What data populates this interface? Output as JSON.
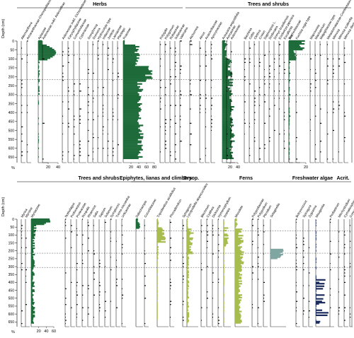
{
  "colors": {
    "herbs": "#1e6b3a",
    "trees": "#1e6b3a",
    "epiphytes": "#a8bd4f",
    "bryophytes": "#a8bd4f",
    "ferns": "#c9c96a",
    "ferns_dark": "#8aa44c",
    "freshwater": "#1c2c5c",
    "gray": "#7fa6a0",
    "black": "#000000"
  },
  "chart_data": [
    {
      "type": "bar",
      "panel": "top",
      "ylabel": "Depth (cm)",
      "xlabel": "%",
      "ylim": [
        0,
        680
      ],
      "yticks": [
        0,
        50,
        100,
        150,
        200,
        250,
        300,
        350,
        400,
        450,
        500,
        550,
        600,
        650
      ],
      "zone_lines": [
        75,
        215,
        305
      ],
      "groups": [
        {
          "name": "Herbs",
          "x0": 24,
          "x1": 258
        },
        {
          "name": "Trees and shrubs",
          "x0": 262,
          "x1": 496
        }
      ],
      "taxa": [
        {
          "name": "Alternanthera",
          "col": 30,
          "w": 6,
          "color": "black",
          "profile": "sparse",
          "group": "herbs"
        },
        {
          "name": "Amaranthaceae-Chenopodiaceae",
          "col": 38,
          "w": 6,
          "color": "black",
          "profile": "sparse",
          "group": "herbs"
        },
        {
          "name": "Apiaceae",
          "col": 54,
          "w": 28,
          "color": "herbs",
          "profile": "apiaceae",
          "group": "herbs",
          "ticks": [
            "20",
            "40"
          ]
        },
        {
          "name": "Asteraceae subf. Asteroideae",
          "col": 60,
          "w": 8,
          "color": "black",
          "profile": "sparse",
          "group": "herbs"
        },
        {
          "name": "Asteraceae subf. Cichorioideae",
          "col": 88,
          "w": 6,
          "color": "black",
          "profile": "sparse",
          "group": "herbs"
        },
        {
          "name": "Caryophyllaceae",
          "col": 96,
          "w": 6,
          "color": "black",
          "profile": "sparse",
          "group": "herbs"
        },
        {
          "name": "Convolvulaceae",
          "col": 104,
          "w": 6,
          "color": "black",
          "profile": "sparse",
          "group": "herbs"
        },
        {
          "name": "Cyperaceae",
          "col": 112,
          "w": 10,
          "color": "black",
          "profile": "sparse",
          "group": "herbs"
        },
        {
          "name": "Gomphrena",
          "col": 124,
          "w": 6,
          "color": "black",
          "profile": "sparse",
          "group": "herbs"
        },
        {
          "name": "Gunnera",
          "col": 131,
          "w": 6,
          "color": "black",
          "profile": "sparse",
          "group": "herbs"
        },
        {
          "name": "Hydrocotyle type",
          "col": 138,
          "w": 6,
          "color": "black",
          "profile": "sparse",
          "group": "herbs"
        },
        {
          "name": "Iridaceae",
          "col": 145,
          "w": 6,
          "color": "black",
          "profile": "sparse",
          "group": "herbs"
        },
        {
          "name": "Justicia",
          "col": 152,
          "w": 6,
          "color": "black",
          "profile": "sparse",
          "group": "herbs"
        },
        {
          "name": "Lamiaceae",
          "col": 159,
          "w": 6,
          "color": "black",
          "profile": "sparse",
          "group": "herbs"
        },
        {
          "name": "Plantago",
          "col": 166,
          "w": 6,
          "color": "black",
          "profile": "sparse",
          "group": "herbs"
        },
        {
          "name": "Poaceae",
          "col": 174,
          "w": 44,
          "color": "herbs",
          "profile": "poaceae",
          "group": "herbs",
          "ticks": [
            "20",
            "40",
            "60",
            "80"
          ]
        },
        {
          "name": "Polygala",
          "col": 226,
          "w": 6,
          "color": "black",
          "profile": "sparse",
          "group": "herbs"
        },
        {
          "name": "Polygonum",
          "col": 233,
          "w": 6,
          "color": "black",
          "profile": "sparse",
          "group": "herbs"
        },
        {
          "name": "Rubiaceae",
          "col": 240,
          "w": 6,
          "color": "black",
          "profile": "sparse",
          "group": "herbs"
        },
        {
          "name": "Solanaceae",
          "col": 247,
          "w": 6,
          "color": "black",
          "profile": "sparse",
          "group": "herbs"
        },
        {
          "name": "Valeriana",
          "col": 254,
          "w": 8,
          "color": "black",
          "profile": "sparse",
          "group": "herbs"
        },
        {
          "name": "Alchornea",
          "col": 268,
          "w": 10,
          "color": "black",
          "profile": "sparse",
          "group": "trees"
        },
        {
          "name": "Alnus",
          "col": 282,
          "w": 6,
          "color": "black",
          "profile": "sparse",
          "group": "trees"
        },
        {
          "name": "Anacardiaceae",
          "col": 290,
          "w": 6,
          "color": "black",
          "profile": "sparse",
          "group": "trees"
        },
        {
          "name": "Apocynaceae",
          "col": 298,
          "w": 6,
          "color": "black",
          "profile": "sparse",
          "group": "trees"
        },
        {
          "name": "Araucaria angustifolia",
          "col": 314,
          "w": 22,
          "color": "trees",
          "profile": "araucaria",
          "group": "trees",
          "ticks": [
            "20",
            "40"
          ]
        },
        {
          "name": "Arecaceae",
          "col": 320,
          "w": 6,
          "color": "black",
          "profile": "sparse",
          "group": "trees"
        },
        {
          "name": "Asteraceae",
          "col": 326,
          "w": 6,
          "color": "black",
          "profile": "sparse",
          "group": "trees"
        },
        {
          "name": "Bauhinia",
          "col": 345,
          "w": 6,
          "color": "black",
          "profile": "sparse",
          "group": "trees"
        },
        {
          "name": "Celtis",
          "col": 352,
          "w": 6,
          "color": "black",
          "profile": "sparse",
          "group": "trees"
        },
        {
          "name": "Clethra",
          "col": 359,
          "w": 6,
          "color": "black",
          "profile": "sparse",
          "group": "trees"
        },
        {
          "name": "Croton",
          "col": 366,
          "w": 6,
          "color": "black",
          "profile": "sparse",
          "group": "trees"
        },
        {
          "name": "Daphnopsis L.",
          "col": 373,
          "w": 6,
          "color": "black",
          "profile": "sparse",
          "group": "trees"
        },
        {
          "name": "Dodonaea",
          "col": 380,
          "w": 6,
          "color": "black",
          "profile": "sparse",
          "group": "trees"
        },
        {
          "name": "Drimys brasiliensis",
          "col": 387,
          "w": 6,
          "color": "black",
          "profile": "sparse",
          "group": "trees"
        },
        {
          "name": "Eriobotrya japonica",
          "col": 394,
          "w": 6,
          "color": "black",
          "profile": "sparse",
          "group": "trees"
        },
        {
          "name": "Escallonia",
          "col": 401,
          "w": 6,
          "color": "black",
          "profile": "sparse",
          "group": "trees"
        },
        {
          "name": "Euphorbiaceae",
          "col": 408,
          "w": 6,
          "color": "black",
          "profile": "sparse",
          "group": "trees"
        },
        {
          "name": "Fuchsia regia type",
          "col": 418,
          "w": 6,
          "color": "black",
          "profile": "sparse",
          "group": "trees"
        },
        {
          "name": "Ilex",
          "col": 408,
          "w": 24,
          "color": "trees",
          "profile": "ilex",
          "group": "trees",
          "ticks": [
            "20"
          ]
        },
        {
          "name": "Maprounea",
          "col": 438,
          "w": 6,
          "color": "black",
          "profile": "sparse",
          "group": "trees"
        },
        {
          "name": "Machaerium",
          "col": 445,
          "w": 6,
          "color": "black",
          "profile": "sparse",
          "group": "trees"
        },
        {
          "name": "Malpighiaceae type",
          "col": 452,
          "w": 6,
          "color": "black",
          "profile": "sparse",
          "group": "trees"
        },
        {
          "name": "Melastomataceae-Combretaceae",
          "col": 462,
          "w": 6,
          "color": "black",
          "profile": "sparse",
          "group": "trees"
        },
        {
          "name": "Mimosa",
          "col": 470,
          "w": 6,
          "color": "black",
          "profile": "sparse",
          "group": "trees"
        },
        {
          "name": "Mimosa scabrella",
          "col": 478,
          "w": 6,
          "color": "black",
          "profile": "sparse",
          "group": "trees"
        },
        {
          "name": "Mimosa diesi",
          "col": 486,
          "w": 6,
          "color": "black",
          "profile": "sparse",
          "group": "trees"
        }
      ]
    },
    {
      "type": "bar",
      "panel": "bottom",
      "ylabel": "Depth (cm)",
      "xlabel": "%",
      "ylim": [
        0,
        680
      ],
      "yticks": [
        0,
        50,
        100,
        150,
        200,
        250,
        300,
        350,
        400,
        450,
        500,
        550,
        600,
        650
      ],
      "zone_lines": [
        75,
        215,
        305
      ],
      "groups": [
        {
          "name": "Trees and shrubs",
          "x0": 24,
          "x1": 255
        },
        {
          "name": "Epiphytes, lianas and climbers",
          "x0": 185,
          "x1": 255
        },
        {
          "name": "Bryop.",
          "x0": 255,
          "x1": 285
        },
        {
          "name": "Ferns",
          "x0": 285,
          "x1": 410
        },
        {
          "name": "Freshwater algae",
          "x0": 410,
          "x1": 473
        },
        {
          "name": "Acrit.",
          "x0": 473,
          "x1": 496
        }
      ],
      "taxa": [
        {
          "name": "Myrica",
          "col": 30,
          "w": 6,
          "color": "black",
          "profile": "sparse",
          "group": "trees2"
        },
        {
          "name": "Myrsine",
          "col": 36,
          "w": 6,
          "color": "black",
          "profile": "sparse",
          "group": "trees2"
        },
        {
          "name": "Myrtaceae",
          "col": 44,
          "w": 32,
          "color": "trees",
          "profile": "myrtaceae",
          "group": "trees2",
          "ticks": [
            "20",
            "40",
            "60"
          ]
        },
        {
          "name": "Nothofagus",
          "col": 92,
          "w": 6,
          "color": "black",
          "profile": "sparse",
          "group": "trees2"
        },
        {
          "name": "Podocarpus",
          "col": 100,
          "w": 6,
          "color": "black",
          "profile": "sparse",
          "group": "trees2"
        },
        {
          "name": "Proteaceae",
          "col": 108,
          "w": 6,
          "color": "black",
          "profile": "sparse",
          "group": "trees2"
        },
        {
          "name": "Roupala",
          "col": 116,
          "w": 6,
          "color": "black",
          "profile": "sparse",
          "group": "trees2"
        },
        {
          "name": "Rhamnus",
          "col": 124,
          "w": 6,
          "color": "black",
          "profile": "sparse",
          "group": "trees2"
        },
        {
          "name": "Salix",
          "col": 132,
          "w": 6,
          "color": "black",
          "profile": "sparse",
          "group": "trees2"
        },
        {
          "name": "Sapium",
          "col": 140,
          "w": 6,
          "color": "black",
          "profile": "sparse",
          "group": "trees2"
        },
        {
          "name": "Solanum",
          "col": 148,
          "w": 6,
          "color": "black",
          "profile": "sparse",
          "group": "trees2"
        },
        {
          "name": "Symplocos",
          "col": 156,
          "w": 6,
          "color": "black",
          "profile": "sparse",
          "group": "trees2"
        },
        {
          "name": "Trema micrantha",
          "col": 164,
          "w": 6,
          "color": "black",
          "profile": "sparse",
          "group": "trees2"
        },
        {
          "name": "Urticaceae",
          "col": 172,
          "w": 6,
          "color": "black",
          "profile": "sparse",
          "group": "trees2"
        },
        {
          "name": "Dalechampia",
          "col": 192,
          "w": 10,
          "color": "trees",
          "profile": "dalechampia",
          "group": "epi"
        },
        {
          "name": "Cucurbitaceae",
          "col": 204,
          "w": 6,
          "color": "black",
          "profile": "sparse",
          "group": "epi"
        },
        {
          "name": "Tripodanthus acutifolius",
          "col": 222,
          "w": 16,
          "color": "epiphytes",
          "profile": "tripodanthus",
          "group": "epi"
        },
        {
          "name": "Phoradendron",
          "col": 240,
          "w": 6,
          "color": "black",
          "profile": "sparse",
          "group": "epi"
        },
        {
          "name": "Sphagnum",
          "col": 258,
          "w": 6,
          "color": "black",
          "profile": "sparse",
          "group": "bryo"
        },
        {
          "name": "Lycopodiella alopecuroides",
          "col": 264,
          "w": 16,
          "color": "epiphytes",
          "profile": "lycopodiella",
          "group": "ferns"
        },
        {
          "name": "Blechnum",
          "col": 284,
          "w": 6,
          "color": "black",
          "profile": "sparse",
          "group": "ferns"
        },
        {
          "name": "Cyathea",
          "col": 292,
          "w": 6,
          "color": "black",
          "profile": "sparse",
          "group": "ferns"
        },
        {
          "name": "Dicksonia",
          "col": 300,
          "w": 6,
          "color": "black",
          "profile": "sparse",
          "group": "ferns"
        },
        {
          "name": "Hymenophyllum",
          "col": 308,
          "w": 6,
          "color": "black",
          "profile": "sparse",
          "group": "ferns"
        },
        {
          "name": "Isoetes",
          "col": 316,
          "w": 10,
          "color": "epiphytes",
          "profile": "isoetes",
          "group": "ferns"
        },
        {
          "name": "Monolete",
          "col": 332,
          "w": 20,
          "color": "epiphytes",
          "profile": "monolete",
          "group": "ferns"
        },
        {
          "name": "Polypodiaceae",
          "col": 356,
          "w": 6,
          "color": "black",
          "profile": "sparse",
          "group": "ferns"
        },
        {
          "name": "Polypodium",
          "col": 364,
          "w": 6,
          "color": "black",
          "profile": "sparse",
          "group": "ferns"
        },
        {
          "name": "Pteridium",
          "col": 372,
          "w": 6,
          "color": "black",
          "profile": "sparse",
          "group": "ferns"
        },
        {
          "name": "Selaginella",
          "col": 382,
          "w": 22,
          "color": "gray",
          "profile": "selaginella",
          "group": "ferns"
        },
        {
          "name": "Botryococcus",
          "col": 418,
          "w": 6,
          "color": "black",
          "profile": "sparse",
          "group": "algae"
        },
        {
          "name": "Spirogyra",
          "col": 428,
          "w": 6,
          "color": "black",
          "profile": "sparse",
          "group": "algae"
        },
        {
          "name": "Zygnema",
          "col": 436,
          "w": 6,
          "color": "black",
          "profile": "sparse",
          "group": "algae"
        },
        {
          "name": "Mougeotia",
          "col": 446,
          "w": 20,
          "color": "freshwater",
          "profile": "mougeotia",
          "group": "algae"
        },
        {
          "name": "Pediastrum",
          "col": 466,
          "w": 6,
          "color": "black",
          "profile": "sparse",
          "group": "algae"
        },
        {
          "name": "Micrhystridium",
          "col": 478,
          "w": 6,
          "color": "black",
          "profile": "sparse",
          "group": "acrit"
        },
        {
          "name": "Cymatiosphaera",
          "col": 486,
          "w": 6,
          "color": "black",
          "profile": "sparse",
          "group": "acrit"
        },
        {
          "name": "Concentricystes",
          "col": 494,
          "w": 4,
          "color": "black",
          "profile": "sparse",
          "group": "acrit"
        }
      ]
    }
  ]
}
